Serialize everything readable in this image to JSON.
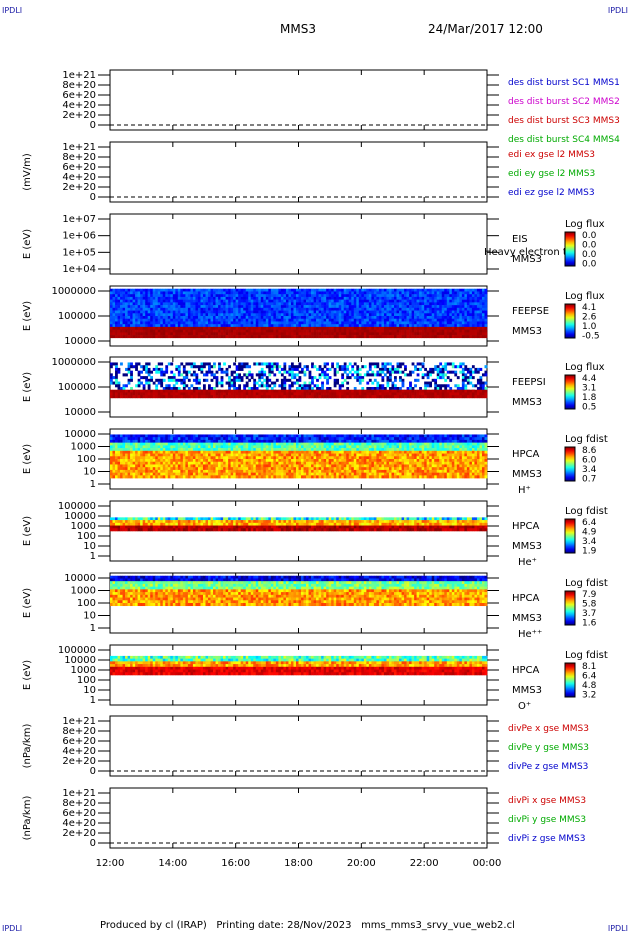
{
  "header": {
    "corner_label": "IPDLI",
    "spacecraft": "MMS3",
    "datetime": "24/Mar/2017 12:00"
  },
  "footer": {
    "producer": "Produced by cl (IRAP)",
    "print_date": "Printing date: 28/Nov/2023",
    "script": "mms_mms3_srvy_vue_web2.cl"
  },
  "chart_data": {
    "type": "heatmap",
    "xaxis": {
      "ticks": [
        "12:00",
        "14:00",
        "16:00",
        "18:00",
        "20:00",
        "22:00",
        "00:00"
      ],
      "range_hours": [
        12,
        24
      ]
    },
    "panels": [
      {
        "id": "des-dist",
        "kind": "line",
        "ylabel": "",
        "ticks": [
          "1e+21",
          "8e+20",
          "6e+20",
          "4e+20",
          "2e+20",
          "0"
        ],
        "series": [
          {
            "name": "des dist burst SC1 MMS1",
            "color": "#0000cc",
            "value": 0
          },
          {
            "name": "des dist burst SC2 MMS2",
            "color": "#cc00cc",
            "value": 0
          },
          {
            "name": "des dist burst SC3 MMS3",
            "color": "#cc0000",
            "value": 0
          },
          {
            "name": "des dist burst SC4 MMS4",
            "color": "#00aa00",
            "value": 0
          }
        ]
      },
      {
        "id": "edi",
        "kind": "line",
        "ylabel": "(mV/m)",
        "ticks": [
          "1e+21",
          "8e+20",
          "6e+20",
          "4e+20",
          "2e+20",
          "0"
        ],
        "series": [
          {
            "name": "edi ex gse l2 MMS3",
            "color": "#cc0000",
            "value": 0
          },
          {
            "name": "edi ey gse l2 MMS3",
            "color": "#00aa00",
            "value": 0
          },
          {
            "name": "edi ez gse l2 MMS3",
            "color": "#0000cc",
            "value": 0
          }
        ]
      },
      {
        "id": "eis",
        "kind": "spec",
        "ylabel": "E (eV)",
        "ticks": [
          "1e+07",
          "1e+06",
          "1e+05",
          "1e+04"
        ],
        "instrument": [
          "EIS",
          "MMS3"
        ],
        "overlay": "Heavy electron to",
        "scale_title": "Log flux",
        "scale_values": [
          "0.0",
          "0.0",
          "0.0",
          "0.0"
        ],
        "fill": []
      },
      {
        "id": "feepse",
        "kind": "spec",
        "ylabel": "E (eV)",
        "ticks": [
          "1000000",
          "100000",
          "10000"
        ],
        "instrument": [
          "FEEPSE",
          "MMS3"
        ],
        "scale_title": "Log flux",
        "scale_values": [
          "4.1",
          "2.6",
          "1.0",
          "-0.5"
        ],
        "fill": [
          {
            "from": 0.08,
            "to": 0.72,
            "level": 0.18,
            "noise": 0.08
          },
          {
            "from": 0.72,
            "to": 0.86,
            "level": 0.96,
            "noise": 0.02
          }
        ]
      },
      {
        "id": "feepsi",
        "kind": "spec",
        "ylabel": "E (eV)",
        "ticks": [
          "1000000",
          "100000",
          "10000"
        ],
        "instrument": [
          "FEEPSI",
          "MMS3"
        ],
        "scale_title": "Log flux",
        "scale_values": [
          "4.4",
          "3.1",
          "1.8",
          "0.5"
        ],
        "fill": [
          {
            "from": 0.12,
            "to": 0.58,
            "level": 0.1,
            "noise": 0.35
          },
          {
            "from": 0.58,
            "to": 0.66,
            "level": 0.95,
            "noise": 0.02
          }
        ]
      },
      {
        "id": "hpca-h",
        "kind": "spec",
        "ylabel": "E (eV)",
        "ticks": [
          "10000",
          "1000",
          "100",
          "10",
          "1"
        ],
        "instrument": [
          "HPCA",
          "MMS3",
          "H⁺"
        ],
        "scale_title": "Log fdist",
        "scale_values": [
          "8.6",
          "6.0",
          "3.4",
          "0.7"
        ],
        "fill": [
          {
            "from": 0.1,
            "to": 0.25,
            "level": 0.15,
            "noise": 0.1
          },
          {
            "from": 0.25,
            "to": 0.4,
            "level": 0.45,
            "noise": 0.1
          },
          {
            "from": 0.4,
            "to": 0.78,
            "level": 0.72,
            "noise": 0.1
          }
        ]
      },
      {
        "id": "hpca-he",
        "kind": "spec",
        "ylabel": "E (eV)",
        "ticks": [
          "100000",
          "10000",
          "1000",
          "100",
          "10",
          "1"
        ],
        "instrument": [
          "HPCA",
          "MMS3",
          "He⁺"
        ],
        "scale_title": "Log fdist",
        "scale_values": [
          "6.4",
          "4.9",
          "3.4",
          "1.9"
        ],
        "fill": [
          {
            "from": 0.28,
            "to": 0.36,
            "level": 0.4,
            "noise": 0.2
          },
          {
            "from": 0.36,
            "to": 0.42,
            "level": 0.7,
            "noise": 0.1
          },
          {
            "from": 0.42,
            "to": 0.47,
            "level": 0.95,
            "noise": 0.05
          }
        ]
      },
      {
        "id": "hpca-he2",
        "kind": "spec",
        "ylabel": "E (eV)",
        "ticks": [
          "10000",
          "1000",
          "100",
          "10",
          "1"
        ],
        "instrument": [
          "HPCA",
          "MMS3",
          "He⁺⁺"
        ],
        "scale_title": "Log fdist",
        "scale_values": [
          "7.9",
          "5.8",
          "3.7",
          "1.6"
        ],
        "fill": [
          {
            "from": 0.05,
            "to": 0.15,
            "level": 0.1,
            "noise": 0.1
          },
          {
            "from": 0.15,
            "to": 0.3,
            "level": 0.5,
            "noise": 0.1
          },
          {
            "from": 0.3,
            "to": 0.52,
            "level": 0.72,
            "noise": 0.1
          }
        ]
      },
      {
        "id": "hpca-o",
        "kind": "spec",
        "ylabel": "E (eV)",
        "ticks": [
          "100000",
          "10000",
          "1000",
          "100",
          "10",
          "1"
        ],
        "instrument": [
          "HPCA",
          "MMS3",
          "O⁺"
        ],
        "scale_title": "Log fdist",
        "scale_values": [
          "8.1",
          "6.4",
          "4.8",
          "3.2"
        ],
        "fill": [
          {
            "from": 0.22,
            "to": 0.3,
            "level": 0.45,
            "noise": 0.15
          },
          {
            "from": 0.3,
            "to": 0.4,
            "level": 0.72,
            "noise": 0.1
          },
          {
            "from": 0.4,
            "to": 0.46,
            "level": 0.9,
            "noise": 0.05
          }
        ]
      },
      {
        "id": "divpe",
        "kind": "line",
        "ylabel": "(nPa/km)",
        "ticks": [
          "1e+21",
          "8e+20",
          "6e+20",
          "4e+20",
          "2e+20",
          "0"
        ],
        "series": [
          {
            "name": "divPe x gse MMS3",
            "color": "#cc0000",
            "value": 0
          },
          {
            "name": "divPe y gse MMS3",
            "color": "#00aa00",
            "value": 0
          },
          {
            "name": "divPe z gse MMS3",
            "color": "#0000cc",
            "value": 0
          }
        ]
      },
      {
        "id": "divpi",
        "kind": "line",
        "ylabel": "(nPa/km)",
        "ticks": [
          "1e+21",
          "8e+20",
          "6e+20",
          "4e+20",
          "2e+20",
          "0"
        ],
        "series": [
          {
            "name": "divPi x gse MMS3",
            "color": "#cc0000",
            "value": 0
          },
          {
            "name": "divPi y gse MMS3",
            "color": "#00aa00",
            "value": 0
          },
          {
            "name": "divPi z gse MMS3",
            "color": "#0000cc",
            "value": 0
          }
        ]
      }
    ]
  }
}
